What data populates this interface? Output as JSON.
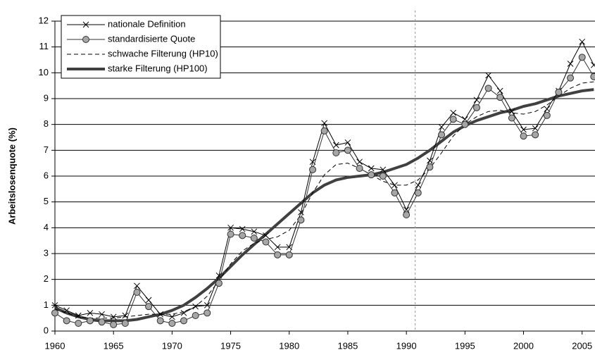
{
  "chart_data": {
    "type": "line",
    "y_label": "Arbeitslosenquote (%)",
    "x": [
      1960,
      1961,
      1962,
      1963,
      1964,
      1965,
      1966,
      1967,
      1968,
      1969,
      1970,
      1971,
      1972,
      1973,
      1974,
      1975,
      1976,
      1977,
      1978,
      1979,
      1980,
      1981,
      1982,
      1983,
      1984,
      1985,
      1986,
      1987,
      1988,
      1989,
      1990,
      1991,
      1992,
      1993,
      1994,
      1995,
      1996,
      1997,
      1998,
      1999,
      2000,
      2001,
      2002,
      2003,
      2004,
      2005,
      2006
    ],
    "series": [
      {
        "name": "nationale Definition",
        "color": "#000000",
        "width": 1,
        "marker": "x",
        "values": [
          1.0,
          0.8,
          0.6,
          0.7,
          0.65,
          0.55,
          0.6,
          1.75,
          1.2,
          0.65,
          0.55,
          0.7,
          0.95,
          1.0,
          2.15,
          4.0,
          3.95,
          3.85,
          3.7,
          3.25,
          3.25,
          4.6,
          6.55,
          8.05,
          7.2,
          7.3,
          6.55,
          6.3,
          6.25,
          5.65,
          4.7,
          5.65,
          6.6,
          7.9,
          8.45,
          8.2,
          8.95,
          9.9,
          9.3,
          8.5,
          7.8,
          7.85,
          8.6,
          9.3,
          10.35,
          11.2,
          10.3
        ]
      },
      {
        "name": "standardisierte Quote",
        "color": "#333333",
        "width": 1,
        "marker": "circle",
        "marker_fill": "#a6a6a6",
        "values": [
          0.7,
          0.4,
          0.3,
          0.4,
          0.35,
          0.25,
          0.3,
          1.5,
          0.95,
          0.4,
          0.3,
          0.4,
          0.6,
          0.7,
          1.85,
          3.75,
          3.7,
          3.6,
          3.45,
          2.95,
          2.95,
          4.3,
          6.25,
          7.75,
          6.9,
          7.0,
          6.3,
          6.05,
          6.0,
          5.35,
          4.5,
          5.35,
          6.35,
          7.6,
          8.2,
          8.0,
          8.65,
          9.4,
          9.05,
          8.25,
          7.55,
          7.6,
          8.35,
          9.25,
          9.8,
          10.6,
          9.85
        ]
      },
      {
        "name": "schwache Filterung (HP10)",
        "color": "#000000",
        "width": 1,
        "dash": true,
        "values": [
          0.85,
          0.7,
          0.55,
          0.5,
          0.5,
          0.5,
          0.55,
          0.6,
          0.65,
          0.65,
          0.65,
          0.75,
          0.95,
          1.35,
          1.95,
          2.6,
          3.1,
          3.4,
          3.55,
          3.65,
          3.9,
          4.5,
          5.35,
          6.05,
          6.45,
          6.5,
          6.3,
          6.05,
          5.8,
          5.65,
          5.65,
          5.85,
          6.3,
          6.9,
          7.55,
          8.0,
          8.3,
          8.5,
          8.55,
          8.45,
          8.4,
          8.5,
          8.75,
          9.1,
          9.4,
          9.6,
          9.65
        ]
      },
      {
        "name": "starke Filterung (HP100)",
        "color": "#404040",
        "width": 4,
        "values": [
          0.9,
          0.7,
          0.55,
          0.45,
          0.4,
          0.4,
          0.4,
          0.45,
          0.55,
          0.65,
          0.8,
          1.0,
          1.3,
          1.65,
          2.05,
          2.5,
          2.95,
          3.35,
          3.75,
          4.15,
          4.55,
          4.95,
          5.35,
          5.65,
          5.85,
          5.95,
          6.0,
          6.05,
          6.15,
          6.3,
          6.45,
          6.7,
          7.0,
          7.35,
          7.7,
          7.95,
          8.15,
          8.3,
          8.45,
          8.55,
          8.7,
          8.8,
          8.95,
          9.1,
          9.2,
          9.3,
          9.35
        ]
      }
    ],
    "xlim": [
      1960,
      2006.1
    ],
    "xticks": [
      1960,
      1965,
      1970,
      1975,
      1980,
      1985,
      1990,
      1995,
      2000,
      2005
    ],
    "ylim": [
      0,
      12
    ],
    "yticks": [
      0,
      1,
      2,
      3,
      4,
      5,
      6,
      7,
      8,
      9,
      10,
      11,
      12
    ],
    "grid": true,
    "vline": 1990.75,
    "legend": "top-left"
  }
}
